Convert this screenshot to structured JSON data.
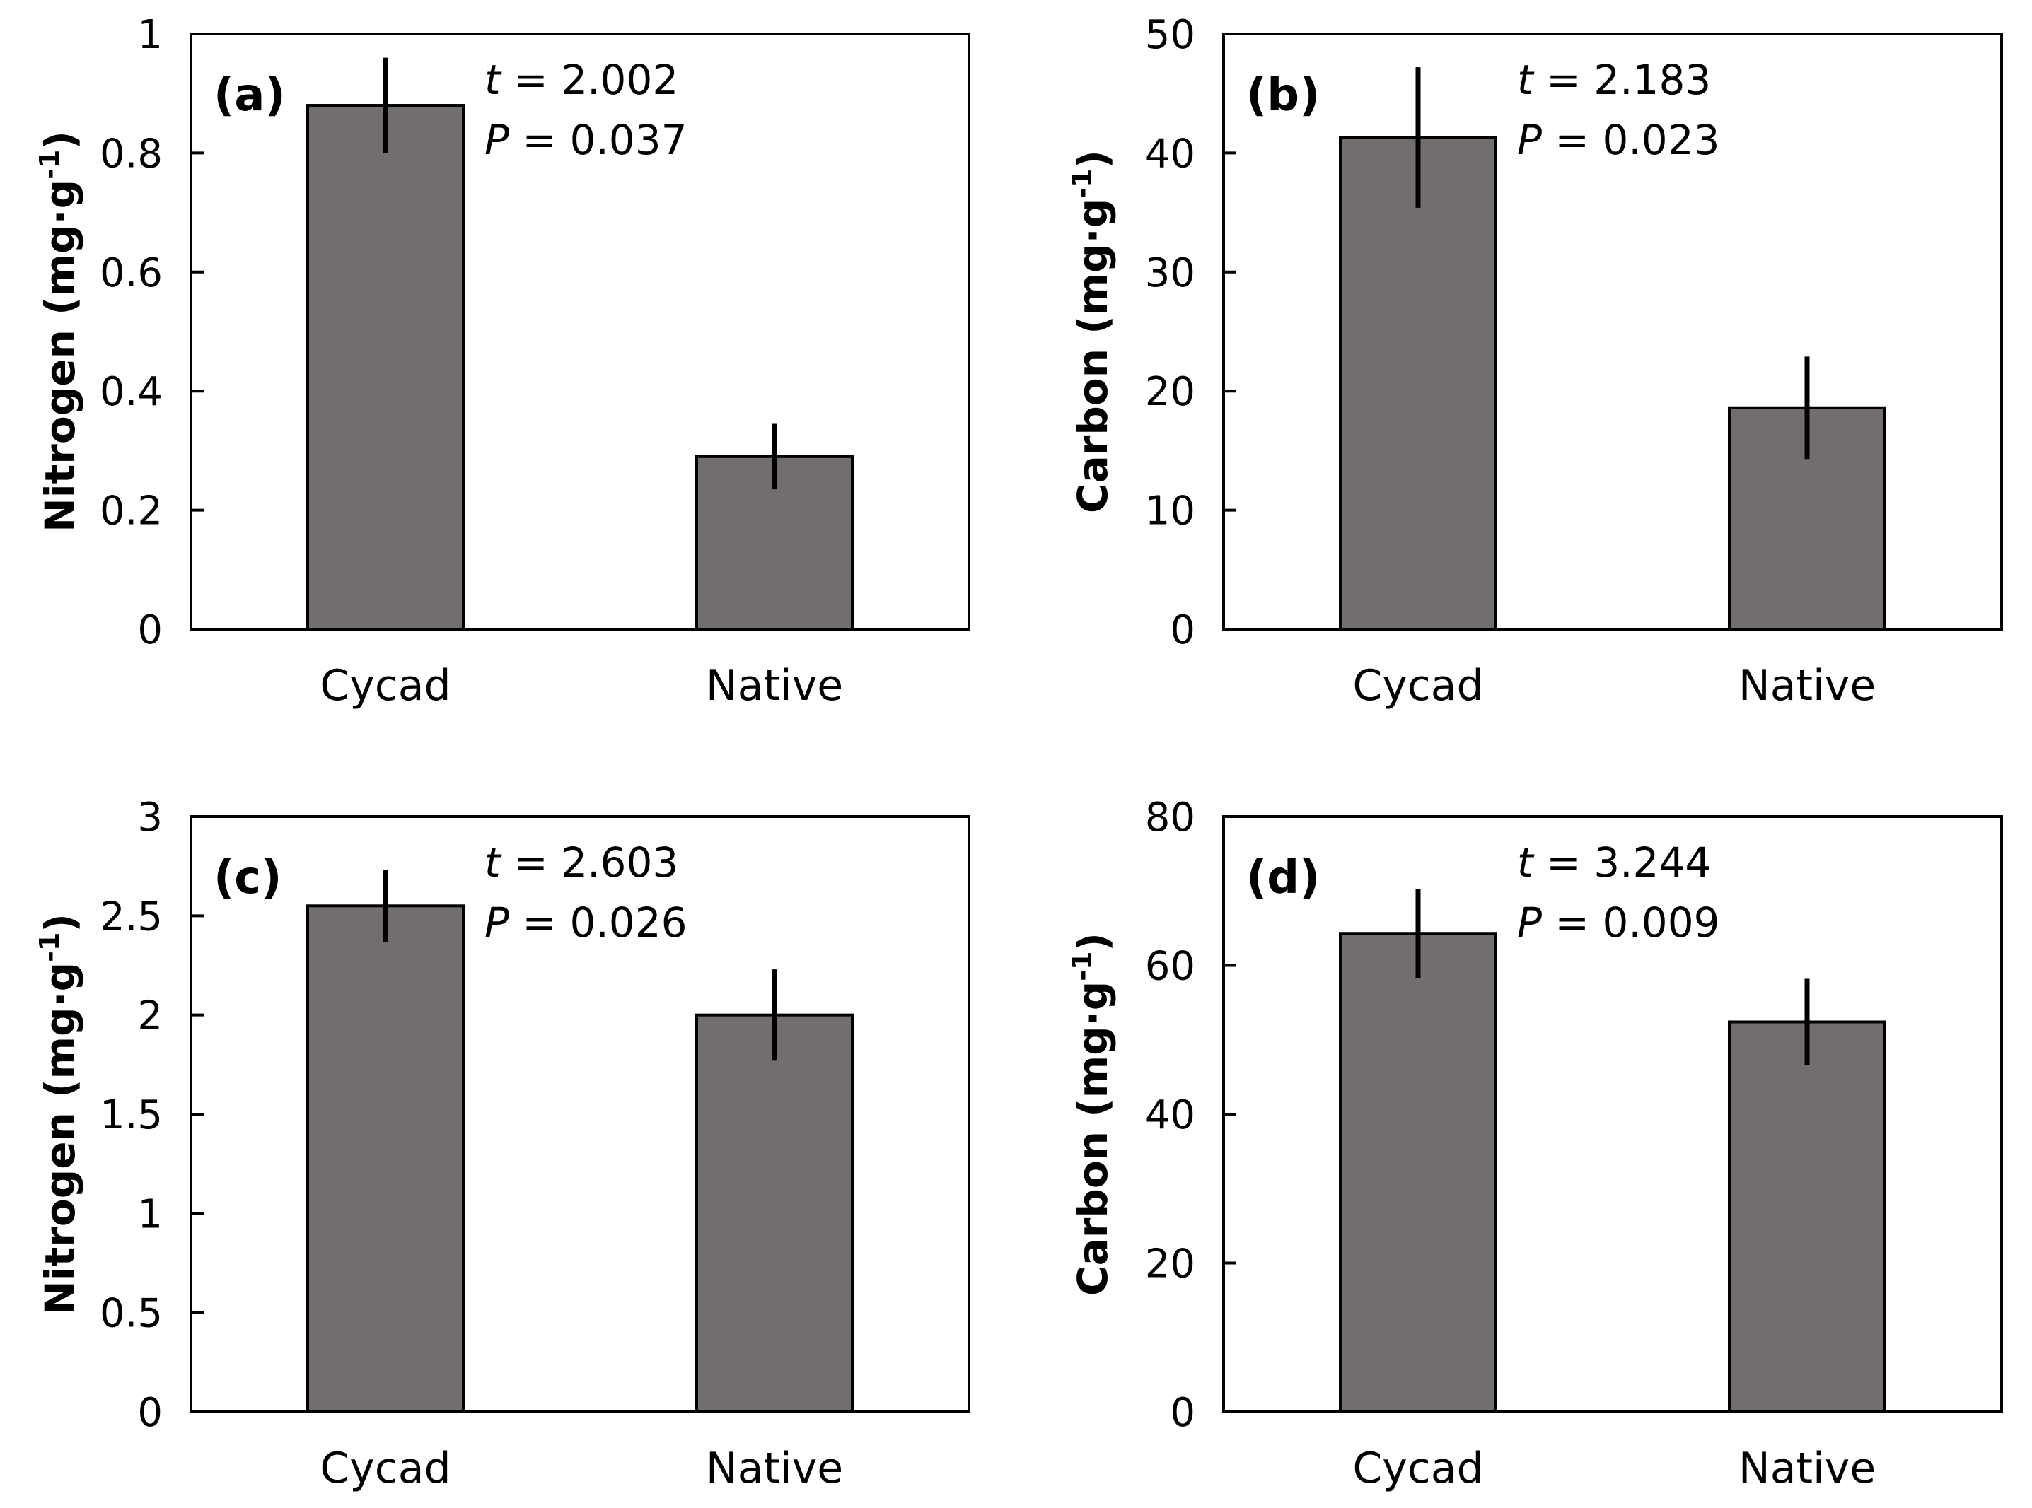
{
  "colors": {
    "bar_fill": "#726e6d",
    "bar_stroke": "#000000",
    "axis": "#000000",
    "error_bar": "#000000"
  },
  "chart_data": [
    {
      "type": "bar",
      "panel_label": "(a)",
      "categories": [
        "Cycad",
        "Native"
      ],
      "values": [
        0.88,
        0.29
      ],
      "errors": [
        0.08,
        0.055
      ],
      "ylabel": "Nitrogen (mg·g",
      "ylabel_sup": "-1",
      "ylabel_close": ")",
      "ylim": [
        0,
        1
      ],
      "yticks": [
        0,
        0.2,
        0.4,
        0.6,
        0.8,
        1
      ],
      "ytick_labels": [
        "0",
        "0.2",
        "0.4",
        "0.6",
        "0.8",
        "1"
      ],
      "stat_t_symbol": "t",
      "stat_t_text": " = 2.002",
      "stat_p_symbol": "P",
      "stat_p_text": " = 0.037"
    },
    {
      "type": "bar",
      "panel_label": "(b)",
      "categories": [
        "Cycad",
        "Native"
      ],
      "values": [
        41.3,
        18.6
      ],
      "errors": [
        5.9,
        4.3
      ],
      "ylabel": "Carbon (mg·g",
      "ylabel_sup": "-1",
      "ylabel_close": ")",
      "ylim": [
        0,
        50
      ],
      "yticks": [
        0,
        10,
        20,
        30,
        40,
        50
      ],
      "ytick_labels": [
        "0",
        "10",
        "20",
        "30",
        "40",
        "50"
      ],
      "stat_t_symbol": "t",
      "stat_t_text": " = 2.183",
      "stat_p_symbol": "P",
      "stat_p_text": " = 0.023"
    },
    {
      "type": "bar",
      "panel_label": "(c)",
      "categories": [
        "Cycad",
        "Native"
      ],
      "values": [
        2.55,
        2.0
      ],
      "errors": [
        0.18,
        0.23
      ],
      "ylabel": "Nitrogen (mg·g",
      "ylabel_sup": "-1",
      "ylabel_close": ")",
      "ylim": [
        0,
        3
      ],
      "yticks": [
        0,
        0.5,
        1,
        1.5,
        2,
        2.5,
        3
      ],
      "ytick_labels": [
        "0",
        "0.5",
        "1",
        "1.5",
        "2",
        "2.5",
        "3"
      ],
      "stat_t_symbol": "t",
      "stat_t_text": " = 2.603",
      "stat_p_symbol": "P",
      "stat_p_text": " = 0.026"
    },
    {
      "type": "bar",
      "panel_label": "(d)",
      "categories": [
        "Cycad",
        "Native"
      ],
      "values": [
        64.3,
        52.4
      ],
      "errors": [
        6.0,
        5.8
      ],
      "ylabel": "Carbon (mg·g",
      "ylabel_sup": "-1",
      "ylabel_close": ")",
      "ylim": [
        0,
        80
      ],
      "yticks": [
        0,
        20,
        40,
        60,
        80
      ],
      "ytick_labels": [
        "0",
        "20",
        "40",
        "60",
        "80"
      ],
      "stat_t_symbol": "t",
      "stat_t_text": " = 3.244",
      "stat_p_symbol": "P",
      "stat_p_text": " = 0.009"
    }
  ]
}
